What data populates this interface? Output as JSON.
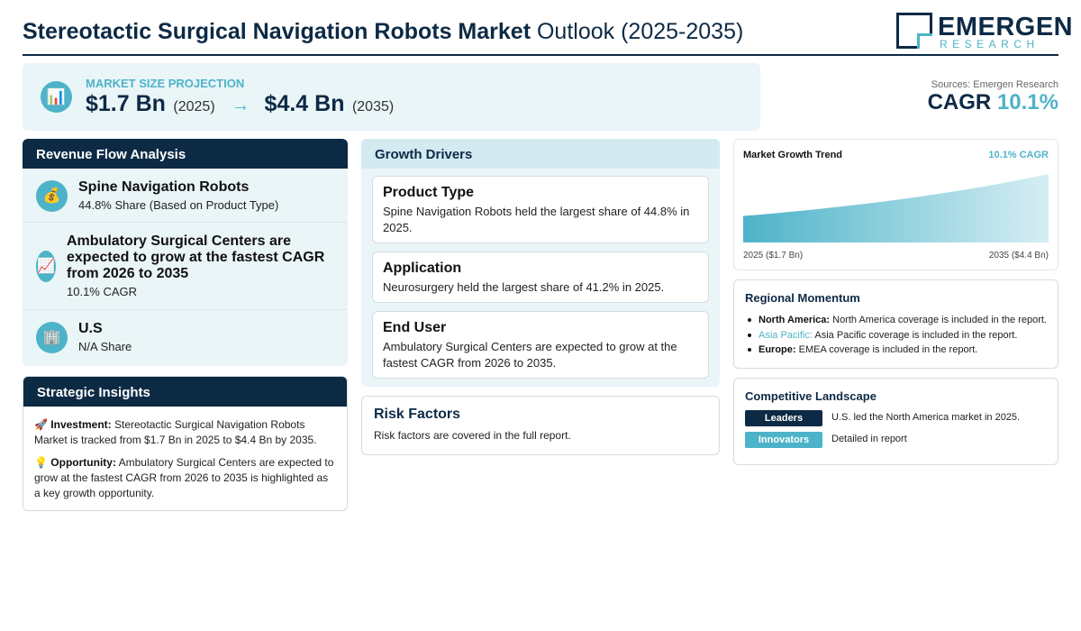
{
  "header": {
    "title_bold": "Stereotactic Surgical Navigation Robots Market",
    "title_rest": "Outlook (2025-2035)",
    "logo_main": "EMERGEN",
    "logo_sub": "RESEARCH"
  },
  "projection": {
    "icon": "bar-chart-icon",
    "label": "MARKET SIZE PROJECTION",
    "start_value": "$1.7 Bn",
    "start_year": "(2025)",
    "arrow": "→",
    "end_value": "$4.4 Bn",
    "end_year": "(2035)"
  },
  "sources": "Sources: Emergen Research",
  "cagr": {
    "label": "CAGR",
    "value": "10.1%"
  },
  "revenue": {
    "heading": "Revenue Flow Analysis",
    "items": [
      {
        "icon": "money-bag-icon",
        "title": "Spine Navigation Robots",
        "sub": "44.8% Share (Based on Product Type)"
      },
      {
        "icon": "chart-increasing-icon",
        "title": "Ambulatory Surgical Centers are expected to grow at the fastest CAGR from 2026 to 2035",
        "sub": "10.1% CAGR"
      },
      {
        "icon": "building-icon",
        "title": "U.S",
        "sub": "N/A Share"
      }
    ]
  },
  "insights": {
    "heading": "Strategic Insights",
    "investment_label": "Investment:",
    "investment_text": "Stereotactic Surgical Navigation Robots Market is tracked from $1.7 Bn in 2025 to $4.4 Bn by 2035.",
    "opportunity_label": "Opportunity:",
    "opportunity_text": "Ambulatory Surgical Centers are expected to grow at the fastest CAGR from 2026 to 2035 is highlighted as a key growth opportunity."
  },
  "drivers": {
    "heading": "Growth Drivers",
    "cards": [
      {
        "title": "Product Type",
        "text": "Spine Navigation Robots held the largest share of 44.8% in 2025."
      },
      {
        "title": "Application",
        "text": "Neurosurgery held the largest share of 41.2% in 2025."
      },
      {
        "title": "End User",
        "text": "Ambulatory Surgical Centers are expected to grow at the fastest CAGR from 2026 to 2035."
      }
    ]
  },
  "risk": {
    "title": "Risk Factors",
    "text": "Risk factors are covered in the full report."
  },
  "trend": {
    "title": "Market Growth Trend",
    "cagr_label": "10.1% CAGR",
    "start_label": "2025 ($1.7 Bn)",
    "end_label": "2035 ($4.4 Bn)"
  },
  "chart_data": {
    "type": "area",
    "title": "Market Growth Trend",
    "x": [
      2025,
      2035
    ],
    "series": [
      {
        "values": [
          1.7,
          4.4
        ]
      }
    ],
    "ylim": [
      0,
      4.4
    ],
    "grid": false
  },
  "regional": {
    "heading": "Regional Momentum",
    "items": [
      {
        "label": "North America:",
        "text": "North America coverage is included in the report."
      },
      {
        "label": "Asia Pacific:",
        "text": "Asia Pacific coverage is included in the report."
      },
      {
        "label": "Europe:",
        "text": "EMEA coverage is included in the report."
      }
    ]
  },
  "competitive": {
    "heading": "Competitive Landscape",
    "rows": [
      {
        "badge": "Leaders",
        "text": "U.S. led the North America market in 2025."
      },
      {
        "badge": "Innovators",
        "text": "Detailed in report"
      }
    ]
  },
  "colors": {
    "navy": "#0d2a45",
    "teal": "#4db3c8",
    "light_bg": "#eaf5f8"
  }
}
